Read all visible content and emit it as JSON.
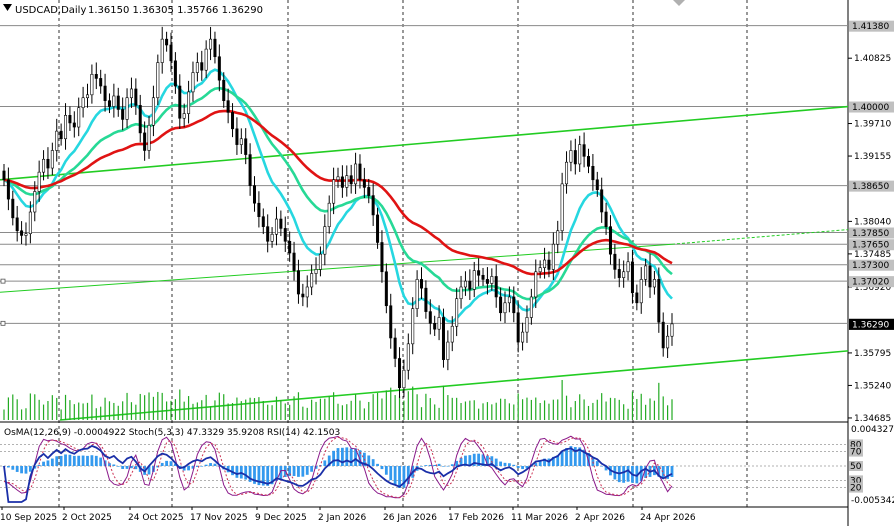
{
  "header": {
    "symbol_text": "USDCAD,Daily",
    "ohlc_text": "1.36150 1.36305 1.35766 1.36290"
  },
  "chart_data": {
    "type": "candlestick",
    "symbol": "USDCAD",
    "timeframe": "Daily",
    "ohlc_last": {
      "open": 1.3615,
      "high": 1.36305,
      "low": 1.35766,
      "close": 1.3629
    },
    "price_range": [
      1.3465,
      1.4175
    ],
    "price_ticks": [
      "1.40825",
      "1.39710",
      "1.39155",
      "1.38040",
      "1.37485",
      "1.36920",
      "1.35795",
      "1.35240",
      "1.34685"
    ],
    "price_labels": [
      {
        "text": "1.41380",
        "price": 1.4138,
        "bg": "#c0c0c0",
        "line": true
      },
      {
        "text": "1.40000",
        "price": 1.4,
        "bg": "#c0c0c0",
        "line": true
      },
      {
        "text": "1.38650",
        "price": 1.3865,
        "bg": "#c0c0c0",
        "line": true
      },
      {
        "text": "1.37850",
        "price": 1.3785,
        "bg": "#c0c0c0",
        "line": true
      },
      {
        "text": "1.37650",
        "price": 1.3765,
        "bg": "#c0c0c0",
        "line": true
      },
      {
        "text": "1.37300",
        "price": 1.373,
        "bg": "#c0c0c0",
        "line": true
      },
      {
        "text": "1.37020",
        "price": 1.3702,
        "bg": "#c0c0c0",
        "line": true
      },
      {
        "text": "1.36300",
        "price": 1.363,
        "bg": "#c0c0c0",
        "line": true
      },
      {
        "text": "1.36290",
        "price": 1.3629,
        "bg": "#000000",
        "line": false
      }
    ],
    "dates": [
      "10 Sep 2025",
      "2 Oct 2025",
      "24 Oct 2025",
      "17 Nov 2025",
      "9 Dec 2025",
      "2 Jan 2026",
      "26 Jan 2026",
      "17 Feb 2026",
      "11 Mar 2026",
      "2 Apr 2026",
      "24 Apr 2026"
    ],
    "closes": [
      1.3875,
      1.3842,
      1.381,
      1.3788,
      1.378,
      1.3783,
      1.382,
      1.3855,
      1.3888,
      1.391,
      1.3895,
      1.3925,
      1.3958,
      1.3945,
      1.3985,
      1.3972,
      1.3965,
      1.3998,
      1.4015,
      1.402,
      1.4055,
      1.4048,
      1.4035,
      1.401,
      1.4,
      1.4018,
      1.3995,
      1.3978,
      1.4015,
      1.403,
      1.4002,
      1.3955,
      1.3925,
      1.3968,
      1.4015,
      1.4075,
      1.4115,
      1.4105,
      1.4078,
      1.4035,
      1.398,
      1.3988,
      1.4025,
      1.4058,
      1.4075,
      1.4062,
      1.4098,
      1.4115,
      1.4085,
      1.4045,
      1.401,
      1.399,
      1.3962,
      1.3935,
      1.3945,
      1.3918,
      1.3865,
      1.3835,
      1.3812,
      1.3795,
      1.377,
      1.3782,
      1.3808,
      1.3792,
      1.377,
      1.375,
      1.372,
      1.368,
      1.3675,
      1.3692,
      1.3715,
      1.3722,
      1.3748,
      1.3795,
      1.3835,
      1.3875,
      1.388,
      1.3862,
      1.3882,
      1.3868,
      1.3902,
      1.3875,
      1.3862,
      1.3848,
      1.3815,
      1.3768,
      1.3718,
      1.366,
      1.3605,
      1.357,
      1.352,
      1.355,
      1.3595,
      1.3655,
      1.3705,
      1.369,
      1.365,
      1.363,
      1.362,
      1.364,
      1.3568,
      1.3598,
      1.3625,
      1.3672,
      1.3692,
      1.3702,
      1.3688,
      1.372,
      1.3712,
      1.3705,
      1.3698,
      1.371,
      1.3675,
      1.3648,
      1.3665,
      1.3675,
      1.3648,
      1.3598,
      1.3615,
      1.364,
      1.3675,
      1.3718,
      1.3725,
      1.3738,
      1.3722,
      1.3765,
      1.3788,
      1.3868,
      1.3905,
      1.3925,
      1.3902,
      1.3935,
      1.3915,
      1.3898,
      1.3875,
      1.3858,
      1.382,
      1.3795,
      1.3748,
      1.3722,
      1.3708,
      1.3718,
      1.3735,
      1.3682,
      1.3665,
      1.3705,
      1.3728,
      1.3692,
      1.3705,
      1.3632,
      1.3588,
      1.3608,
      1.3629
    ],
    "moving_averages": [
      {
        "name": "EMA fast",
        "color": "#26d7e0"
      },
      {
        "name": "EMA mid",
        "color": "#27d996"
      },
      {
        "name": "EMA slow",
        "color": "#e01313"
      }
    ],
    "trend_lines_color": "#22cc22",
    "oscillators": {
      "label": "OsMA(12,26,9) -0.0004922  Stoch(5,3,3) 47.3329 35.9208  RSI(14) 42.1503",
      "scale_top": "0.0043278",
      "scale_bottom": "-0.0053421",
      "levels": [
        "80",
        "70",
        "50",
        "30",
        "20"
      ]
    }
  }
}
